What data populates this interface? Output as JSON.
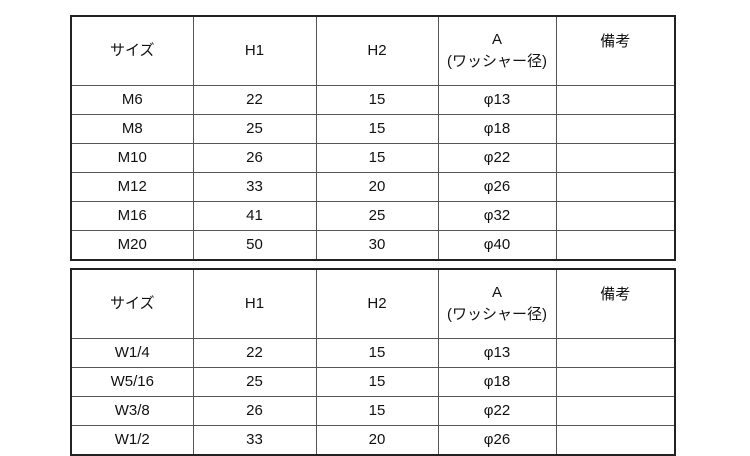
{
  "headers": {
    "size": "サイズ",
    "h1": "H1",
    "h2": "H2",
    "a_line1": "A",
    "a_line2": "(ワッシャー径)",
    "remarks": "備考"
  },
  "table_metric": [
    {
      "size": "M6",
      "h1": "22",
      "h2": "15",
      "a": "φ13",
      "remarks": ""
    },
    {
      "size": "M8",
      "h1": "25",
      "h2": "15",
      "a": "φ18",
      "remarks": ""
    },
    {
      "size": "M10",
      "h1": "26",
      "h2": "15",
      "a": "φ22",
      "remarks": ""
    },
    {
      "size": "M12",
      "h1": "33",
      "h2": "20",
      "a": "φ26",
      "remarks": ""
    },
    {
      "size": "M16",
      "h1": "41",
      "h2": "25",
      "a": "φ32",
      "remarks": ""
    },
    {
      "size": "M20",
      "h1": "50",
      "h2": "30",
      "a": "φ40",
      "remarks": ""
    }
  ],
  "table_inch": [
    {
      "size": "W1/4",
      "h1": "22",
      "h2": "15",
      "a": "φ13",
      "remarks": ""
    },
    {
      "size": "W5/16",
      "h1": "25",
      "h2": "15",
      "a": "φ18",
      "remarks": ""
    },
    {
      "size": "W3/8",
      "h1": "26",
      "h2": "15",
      "a": "φ22",
      "remarks": ""
    },
    {
      "size": "W1/2",
      "h1": "33",
      "h2": "20",
      "a": "φ26",
      "remarks": ""
    }
  ]
}
